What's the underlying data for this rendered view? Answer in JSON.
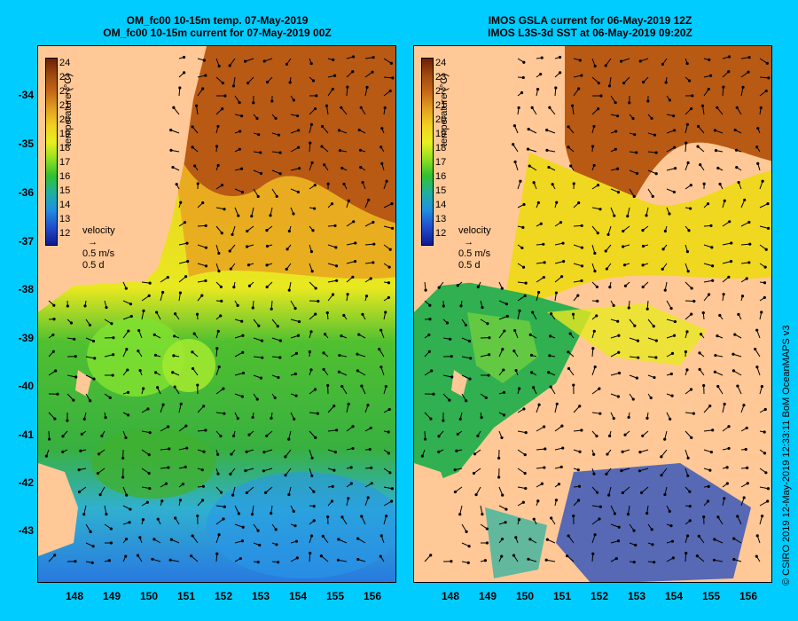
{
  "titles": {
    "left_line1": "OM_fc00 10-15m temp. 07-May-2019",
    "left_line2": "OM_fc00 10-15m current for 07-May-2019 00Z",
    "right_line1": "IMOS GSLA current for 06-May-2019 12Z",
    "right_line2": "IMOS L3S-3d SST at 06-May-2019 09:20Z"
  },
  "y_ticks": [
    "-34",
    "-35",
    "-36",
    "-37",
    "-38",
    "-39",
    "-40",
    "-41",
    "-42",
    "-43"
  ],
  "x_ticks": [
    "148",
    "149",
    "150",
    "151",
    "152",
    "153",
    "154",
    "155",
    "156"
  ],
  "colorbar": {
    "labels": [
      "24",
      "23",
      "22",
      "21",
      "20",
      "19",
      "18",
      "17",
      "16",
      "15",
      "14",
      "13",
      "12"
    ],
    "title": "temperature (°C)"
  },
  "velocity": {
    "title": "velocity",
    "speed": "0.5 m/s",
    "time": "0.5 d"
  },
  "credit": "© CSIRO 2019   12-May-2019 12:33:11 BoM OceanMAPS v3",
  "colors": {
    "background": "#00CCFF",
    "land": "#FFC896",
    "warm": "#B85A14",
    "cool": "#1E64DC"
  }
}
